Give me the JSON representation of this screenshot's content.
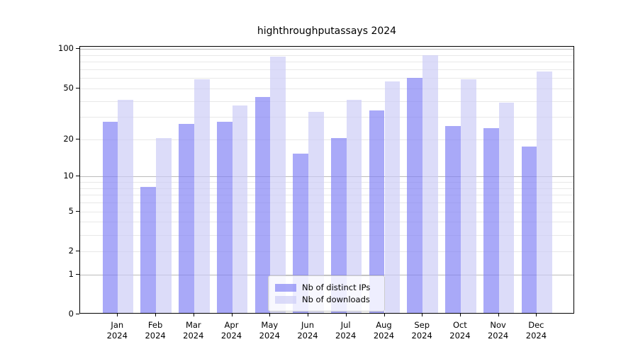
{
  "title": "highthroughputassays 2024",
  "axes": {
    "y_tick_labels": [
      "100",
      "50",
      "20",
      "10",
      "5",
      "2",
      "1",
      "0"
    ],
    "x_tick_year": "2024"
  },
  "legend": {
    "items": [
      "Nb of distinct IPs",
      "Nb of downloads"
    ]
  },
  "chart_data": {
    "type": "bar",
    "title": "highthroughputassays 2024",
    "categories": [
      "Jan",
      "Feb",
      "Mar",
      "Apr",
      "May",
      "Jun",
      "Jul",
      "Aug",
      "Sep",
      "Oct",
      "Nov",
      "Dec"
    ],
    "x_tick_year": "2024",
    "series": [
      {
        "name": "Nb of distinct IPs",
        "color": "rgba(128,128,245,0.68)",
        "values": [
          27,
          8,
          26,
          27,
          42,
          15,
          20,
          33,
          59,
          25,
          24,
          17
        ]
      },
      {
        "name": "Nb of downloads",
        "color": "rgba(203,203,246,0.68)",
        "values": [
          40,
          20,
          57,
          36,
          86,
          32,
          40,
          55,
          88,
          57,
          38,
          66
        ]
      }
    ],
    "yscale": "log1p",
    "ylim": [
      0,
      100
    ],
    "yticks": [
      0,
      1,
      2,
      5,
      10,
      20,
      50,
      100
    ],
    "major_gridlines": [
      1,
      10,
      100
    ],
    "minor_gridlines": [
      2,
      3,
      4,
      5,
      6,
      7,
      8,
      9,
      20,
      30,
      40,
      50,
      60,
      70,
      80,
      90
    ],
    "grid": "horizontal-only",
    "legend_position": "bottom-center",
    "colors": {
      "bar_distinct_ips": "rgba(128,128,245,0.68)",
      "bar_downloads": "rgba(203,203,246,0.68)",
      "major_grid": "#bbbbbb",
      "minor_grid": "#e8e8e8",
      "spine": "#000000",
      "background": "#ffffff"
    }
  }
}
